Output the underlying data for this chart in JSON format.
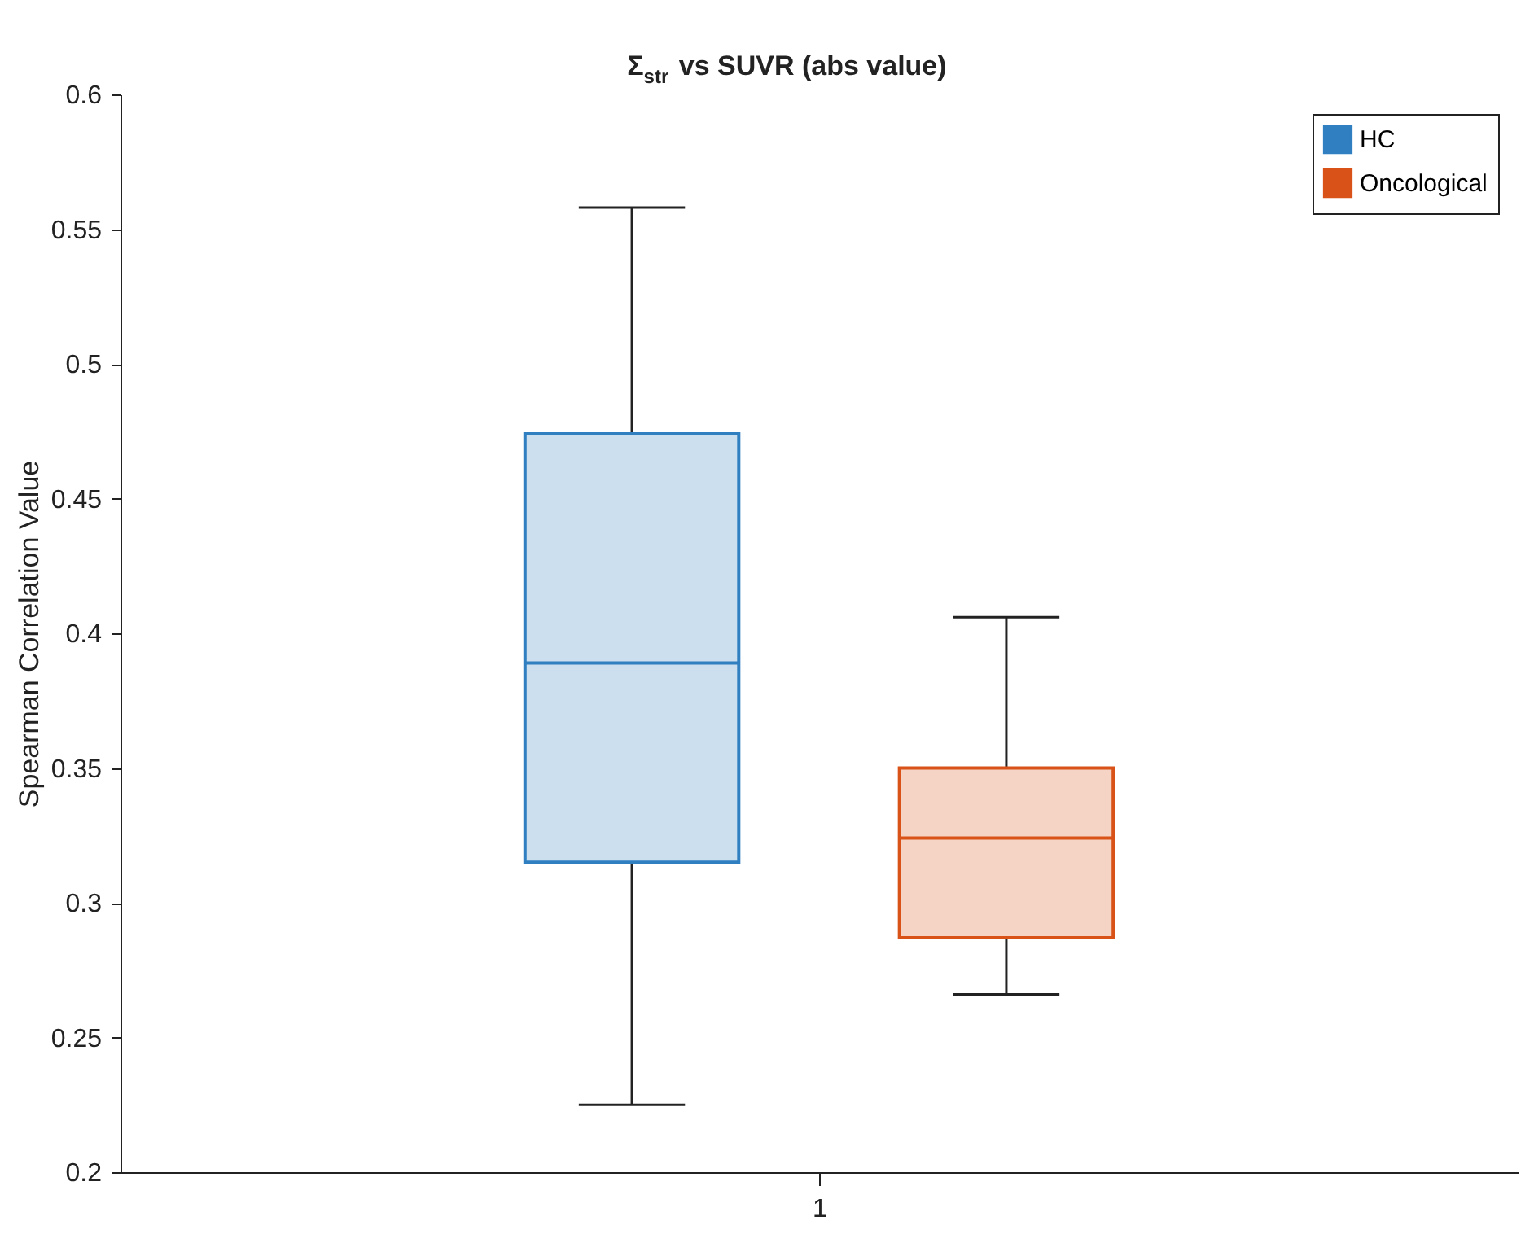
{
  "chart_data": {
    "type": "box",
    "title": "Σ$_{str}$ vs SUVR (abs value)",
    "ylabel": "Spearman Correlation Value",
    "categories": [
      "1"
    ],
    "series": [
      {
        "name": "HC",
        "color": "#2f7fc1",
        "boxes": [
          {
            "low": 0.225,
            "q1": 0.315,
            "median": 0.389,
            "q3": 0.474,
            "high": 0.558
          }
        ]
      },
      {
        "name": "Oncological",
        "color": "#d95319",
        "boxes": [
          {
            "low": 0.266,
            "q1": 0.287,
            "median": 0.324,
            "q3": 0.35,
            "high": 0.406
          }
        ]
      }
    ],
    "ylim": [
      0.2,
      0.6
    ],
    "yticks": [
      0.2,
      0.25,
      0.3,
      0.35,
      0.4,
      0.45,
      0.5,
      0.55,
      0.6
    ],
    "grid": false,
    "legend": "top right"
  }
}
